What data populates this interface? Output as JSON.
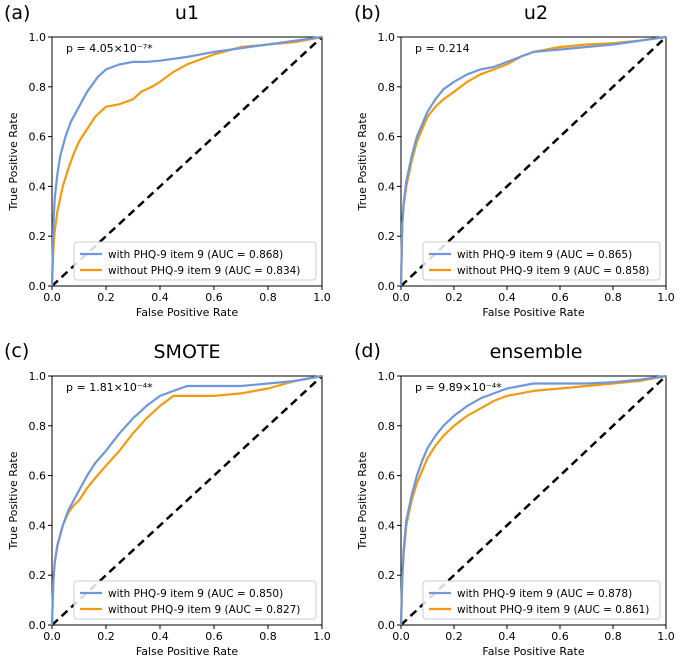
{
  "colors": {
    "with": "#6f97dc",
    "without": "#f39a12",
    "diagonal": "#000000"
  },
  "chart_data": [
    {
      "type": "line",
      "panel_label": "(a)",
      "title": "u1",
      "annotation_text": "p = 4.05×10⁻⁷*",
      "xlabel": "False Positive Rate",
      "ylabel": "True Positive Rate",
      "xlim": [
        0,
        1
      ],
      "ylim": [
        0,
        1
      ],
      "x_ticks": [
        "0.0",
        "0.2",
        "0.4",
        "0.6",
        "0.8",
        "1.0"
      ],
      "y_ticks": [
        "0.0",
        "0.2",
        "0.4",
        "0.6",
        "0.8",
        "1.0"
      ],
      "legend_position": "lower right",
      "series": [
        {
          "name": "with PHQ-9 item 9 (AUC = 0.868)",
          "color_key": "with",
          "x": [
            0,
            0.005,
            0.01,
            0.02,
            0.03,
            0.05,
            0.07,
            0.1,
            0.13,
            0.17,
            0.2,
            0.25,
            0.3,
            0.35,
            0.4,
            0.5,
            0.6,
            0.7,
            0.8,
            0.9,
            1.0
          ],
          "y": [
            0,
            0.25,
            0.35,
            0.45,
            0.52,
            0.6,
            0.66,
            0.72,
            0.78,
            0.84,
            0.87,
            0.89,
            0.9,
            0.9,
            0.905,
            0.92,
            0.94,
            0.955,
            0.97,
            0.985,
            1.0
          ]
        },
        {
          "name": "without PHQ-9 item 9 (AUC = 0.834)",
          "color_key": "without",
          "x": [
            0,
            0.005,
            0.01,
            0.02,
            0.04,
            0.06,
            0.08,
            0.1,
            0.13,
            0.16,
            0.2,
            0.25,
            0.3,
            0.33,
            0.37,
            0.4,
            0.45,
            0.5,
            0.6,
            0.7,
            0.8,
            0.9,
            1.0
          ],
          "y": [
            0,
            0.15,
            0.22,
            0.3,
            0.4,
            0.47,
            0.53,
            0.58,
            0.63,
            0.68,
            0.72,
            0.73,
            0.75,
            0.78,
            0.8,
            0.82,
            0.86,
            0.89,
            0.93,
            0.96,
            0.97,
            0.98,
            1.0
          ]
        }
      ]
    },
    {
      "type": "line",
      "panel_label": "(b)",
      "title": "u2",
      "annotation_text": "p = 0.214",
      "xlabel": "False Positive Rate",
      "ylabel": "True Positive Rate",
      "xlim": [
        0,
        1
      ],
      "ylim": [
        0,
        1
      ],
      "x_ticks": [
        "0.0",
        "0.2",
        "0.4",
        "0.6",
        "0.8",
        "1.0"
      ],
      "y_ticks": [
        "0.0",
        "0.2",
        "0.4",
        "0.6",
        "0.8",
        "1.0"
      ],
      "legend_position": "lower right",
      "series": [
        {
          "name": "with PHQ-9 item 9 (AUC = 0.865)",
          "color_key": "with",
          "x": [
            0,
            0.005,
            0.01,
            0.02,
            0.04,
            0.06,
            0.08,
            0.1,
            0.13,
            0.16,
            0.2,
            0.25,
            0.3,
            0.35,
            0.4,
            0.45,
            0.5,
            0.6,
            0.7,
            0.8,
            0.9,
            1.0
          ],
          "y": [
            0,
            0.25,
            0.33,
            0.42,
            0.52,
            0.6,
            0.65,
            0.7,
            0.75,
            0.79,
            0.82,
            0.85,
            0.87,
            0.88,
            0.9,
            0.92,
            0.94,
            0.95,
            0.96,
            0.97,
            0.985,
            1.0
          ]
        },
        {
          "name": "without PHQ-9 item 9 (AUC = 0.858)",
          "color_key": "without",
          "x": [
            0,
            0.005,
            0.01,
            0.02,
            0.04,
            0.06,
            0.08,
            0.1,
            0.13,
            0.16,
            0.2,
            0.25,
            0.3,
            0.35,
            0.4,
            0.45,
            0.5,
            0.6,
            0.7,
            0.8,
            0.9,
            1.0
          ],
          "y": [
            0,
            0.25,
            0.32,
            0.4,
            0.5,
            0.58,
            0.63,
            0.68,
            0.72,
            0.75,
            0.78,
            0.82,
            0.85,
            0.87,
            0.89,
            0.92,
            0.94,
            0.96,
            0.97,
            0.975,
            0.985,
            1.0
          ]
        }
      ]
    },
    {
      "type": "line",
      "panel_label": "(c)",
      "title": "SMOTE",
      "annotation_text": "p = 1.81×10⁻⁴*",
      "xlabel": "False Positive Rate",
      "ylabel": "True Positive Rate",
      "xlim": [
        0,
        1
      ],
      "ylim": [
        0,
        1
      ],
      "x_ticks": [
        "0.0",
        "0.2",
        "0.4",
        "0.6",
        "0.8",
        "1.0"
      ],
      "y_ticks": [
        "0.0",
        "0.2",
        "0.4",
        "0.6",
        "0.8",
        "1.0"
      ],
      "legend_position": "lower right",
      "series": [
        {
          "name": "with PHQ-9 item 9 (AUC = 0.850)",
          "color_key": "with",
          "x": [
            0,
            0.005,
            0.01,
            0.02,
            0.04,
            0.06,
            0.08,
            0.1,
            0.13,
            0.16,
            0.2,
            0.25,
            0.3,
            0.35,
            0.4,
            0.45,
            0.5,
            0.6,
            0.7,
            0.8,
            0.9,
            1.0
          ],
          "y": [
            0,
            0.18,
            0.25,
            0.32,
            0.4,
            0.46,
            0.5,
            0.54,
            0.6,
            0.65,
            0.7,
            0.77,
            0.83,
            0.88,
            0.92,
            0.94,
            0.96,
            0.96,
            0.96,
            0.97,
            0.98,
            1.0
          ]
        },
        {
          "name": "without PHQ-9 item 9 (AUC = 0.827)",
          "color_key": "without",
          "x": [
            0,
            0.005,
            0.01,
            0.02,
            0.04,
            0.06,
            0.08,
            0.1,
            0.13,
            0.16,
            0.2,
            0.25,
            0.3,
            0.35,
            0.4,
            0.45,
            0.5,
            0.6,
            0.7,
            0.8,
            0.9,
            1.0
          ],
          "y": [
            0,
            0.18,
            0.25,
            0.32,
            0.4,
            0.45,
            0.48,
            0.5,
            0.55,
            0.59,
            0.64,
            0.7,
            0.77,
            0.83,
            0.88,
            0.92,
            0.92,
            0.92,
            0.93,
            0.95,
            0.98,
            1.0
          ]
        }
      ]
    },
    {
      "type": "line",
      "panel_label": "(d)",
      "title": "ensemble",
      "annotation_text": "p = 9.89×10⁻⁴*",
      "xlabel": "False Positive Rate",
      "ylabel": "True Positive Rate",
      "xlim": [
        0,
        1
      ],
      "ylim": [
        0,
        1
      ],
      "x_ticks": [
        "0.0",
        "0.2",
        "0.4",
        "0.6",
        "0.8",
        "1.0"
      ],
      "y_ticks": [
        "0.0",
        "0.2",
        "0.4",
        "0.6",
        "0.8",
        "1.0"
      ],
      "legend_position": "lower right",
      "series": [
        {
          "name": "with PHQ-9 item 9 (AUC = 0.878)",
          "color_key": "with",
          "x": [
            0,
            0.005,
            0.01,
            0.02,
            0.04,
            0.06,
            0.08,
            0.1,
            0.13,
            0.16,
            0.2,
            0.25,
            0.3,
            0.35,
            0.4,
            0.45,
            0.5,
            0.6,
            0.7,
            0.8,
            0.9,
            1.0
          ],
          "y": [
            0,
            0.2,
            0.3,
            0.42,
            0.52,
            0.6,
            0.66,
            0.71,
            0.76,
            0.8,
            0.84,
            0.88,
            0.91,
            0.93,
            0.95,
            0.96,
            0.97,
            0.97,
            0.97,
            0.975,
            0.985,
            1.0
          ]
        },
        {
          "name": "without PHQ-9 item 9 (AUC = 0.861)",
          "color_key": "without",
          "x": [
            0,
            0.005,
            0.01,
            0.02,
            0.04,
            0.06,
            0.08,
            0.1,
            0.13,
            0.16,
            0.2,
            0.25,
            0.3,
            0.35,
            0.4,
            0.45,
            0.5,
            0.6,
            0.7,
            0.8,
            0.9,
            1.0
          ],
          "y": [
            0,
            0.18,
            0.28,
            0.4,
            0.5,
            0.57,
            0.62,
            0.67,
            0.72,
            0.76,
            0.8,
            0.84,
            0.87,
            0.9,
            0.92,
            0.93,
            0.94,
            0.95,
            0.96,
            0.97,
            0.98,
            1.0
          ]
        }
      ]
    }
  ]
}
